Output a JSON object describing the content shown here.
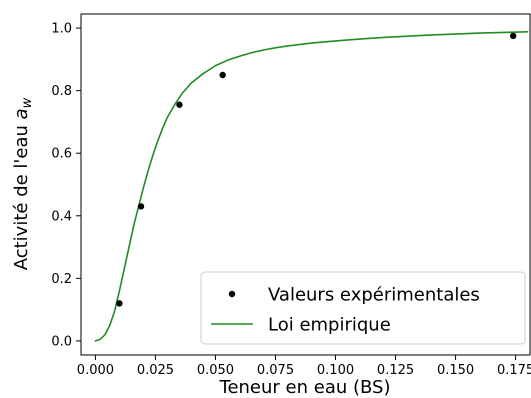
{
  "chart_data": {
    "type": "scatter",
    "xlabel": "Teneur en eau (BS)",
    "ylabel_prefix": "Activité de l'eau ",
    "ylabel_symbol": "a",
    "ylabel_subscript": "w",
    "xlim": [
      -0.006,
      0.181
    ],
    "ylim": [
      -0.045,
      1.045
    ],
    "x_ticks": [
      0.0,
      0.025,
      0.05,
      0.075,
      0.1,
      0.125,
      0.15,
      0.175
    ],
    "x_tick_labels": [
      "0.000",
      "0.025",
      "0.050",
      "0.075",
      "0.100",
      "0.125",
      "0.150",
      "0.175"
    ],
    "y_ticks": [
      0.0,
      0.2,
      0.4,
      0.6,
      0.8,
      1.0
    ],
    "y_tick_labels": [
      "0.0",
      "0.2",
      "0.4",
      "0.6",
      "0.8",
      "1.0"
    ],
    "grid": false,
    "legend_position": "bottom-right",
    "series": [
      {
        "name": "Valeurs expérimentales",
        "kind": "scatter",
        "color": "#000000",
        "x": [
          0.01,
          0.019,
          0.035,
          0.053,
          0.174
        ],
        "y": [
          0.12,
          0.43,
          0.755,
          0.85,
          0.975
        ]
      },
      {
        "name": "Loi empirique",
        "kind": "line",
        "color": "#228b22",
        "x": [
          0.0,
          0.002,
          0.004,
          0.006,
          0.008,
          0.01,
          0.012,
          0.014,
          0.016,
          0.018,
          0.02,
          0.022,
          0.024,
          0.026,
          0.028,
          0.03,
          0.033,
          0.036,
          0.04,
          0.045,
          0.05,
          0.055,
          0.06,
          0.065,
          0.07,
          0.075,
          0.08,
          0.09,
          0.1,
          0.11,
          0.12,
          0.13,
          0.14,
          0.15,
          0.16,
          0.17,
          0.18
        ],
        "y": [
          0.0,
          0.005,
          0.02,
          0.05,
          0.095,
          0.16,
          0.23,
          0.3,
          0.37,
          0.43,
          0.49,
          0.545,
          0.595,
          0.64,
          0.68,
          0.715,
          0.755,
          0.79,
          0.825,
          0.855,
          0.88,
          0.897,
          0.91,
          0.921,
          0.93,
          0.937,
          0.943,
          0.952,
          0.959,
          0.965,
          0.97,
          0.974,
          0.978,
          0.981,
          0.984,
          0.986,
          0.988
        ]
      }
    ]
  }
}
